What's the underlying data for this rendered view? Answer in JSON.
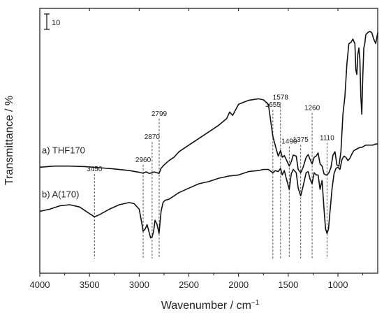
{
  "chart_data": {
    "type": "line",
    "xlabel": "Wavenumber / cm",
    "xlabel_sup": "−1",
    "ylabel": "Transmittance / %",
    "x_range": [
      4000,
      600
    ],
    "x_ticks": [
      4000,
      3500,
      3000,
      2500,
      2000,
      1500,
      1000
    ],
    "x_tick_labels": [
      "4000",
      "3500",
      "3000",
      "2500",
      "2000",
      "1500",
      "1000"
    ],
    "scale_bar_label": "10",
    "peak_markers": [
      {
        "label": "3450",
        "x": 3450
      },
      {
        "label": "2960",
        "x": 2960
      },
      {
        "label": "2870",
        "x": 2870
      },
      {
        "label": "2799",
        "x": 2799
      },
      {
        "label": "1655",
        "x": 1655
      },
      {
        "label": "1578",
        "x": 1578
      },
      {
        "label": "1490",
        "x": 1490
      },
      {
        "label": "1375",
        "x": 1375
      },
      {
        "label": "1260",
        "x": 1260
      },
      {
        "label": "1110",
        "x": 1110
      }
    ],
    "series": [
      {
        "name": "a) THF170",
        "x": [
          4000,
          3850,
          3700,
          3550,
          3400,
          3250,
          3100,
          3000,
          2960,
          2930,
          2900,
          2870,
          2850,
          2800,
          2780,
          2750,
          2700,
          2650,
          2600,
          2500,
          2400,
          2300,
          2200,
          2120,
          2090,
          2060,
          2000,
          1900,
          1800,
          1750,
          1700,
          1655,
          1620,
          1600,
          1578,
          1560,
          1540,
          1520,
          1490,
          1470,
          1450,
          1420,
          1400,
          1375,
          1350,
          1320,
          1300,
          1280,
          1260,
          1240,
          1220,
          1200,
          1180,
          1160,
          1140,
          1120,
          1110,
          1090,
          1070,
          1050,
          1030,
          1010,
          990,
          970,
          950,
          930,
          910,
          890,
          870,
          850,
          830,
          820,
          810,
          800,
          790,
          780,
          770,
          760,
          750,
          740,
          730,
          720,
          700,
          680,
          660,
          640,
          620,
          600
        ],
        "y": [
          48,
          48.5,
          48.5,
          48.3,
          47.8,
          47.2,
          46.5,
          45.7,
          45.3,
          45.9,
          45.2,
          45.5,
          45.9,
          45.2,
          47.5,
          49,
          51,
          52.5,
          55,
          58,
          61,
          64,
          67,
          70,
          73,
          71.5,
          76.5,
          78.3,
          79,
          78.5,
          76.5,
          62,
          56,
          53,
          55.5,
          52.5,
          53.3,
          51.5,
          48.5,
          50.5,
          53.5,
          53,
          47,
          45.5,
          48,
          52.5,
          53.7,
          51.5,
          49.5,
          52.5,
          53,
          54.5,
          49.5,
          48.5,
          45,
          44.5,
          44.5,
          45.5,
          48,
          53.5,
          55,
          49,
          48.5,
          55,
          72,
          80,
          95,
          104,
          104.5,
          106,
          104,
          92,
          90,
          99,
          102,
          97,
          80,
          72,
          89,
          102,
          104,
          108,
          109,
          109.5,
          109,
          106,
          104,
          109
        ]
      },
      {
        "name": "b) A(170)",
        "x": [
          4000,
          3900,
          3800,
          3700,
          3600,
          3500,
          3450,
          3400,
          3300,
          3200,
          3100,
          3050,
          3000,
          2975,
          2960,
          2940,
          2920,
          2900,
          2885,
          2870,
          2855,
          2840,
          2820,
          2800,
          2780,
          2760,
          2740,
          2700,
          2600,
          2500,
          2400,
          2300,
          2200,
          2100,
          2000,
          1900,
          1800,
          1750,
          1700,
          1655,
          1630,
          1600,
          1578,
          1560,
          1540,
          1520,
          1490,
          1470,
          1450,
          1420,
          1400,
          1375,
          1350,
          1320,
          1300,
          1280,
          1260,
          1240,
          1220,
          1200,
          1180,
          1160,
          1140,
          1125,
          1110,
          1095,
          1080,
          1060,
          1040,
          1020,
          1000,
          980,
          960,
          940,
          920,
          900,
          880,
          860,
          840,
          820,
          800,
          780,
          760,
          740,
          720,
          700,
          680,
          650,
          620,
          600
        ],
        "y": [
          28,
          29,
          30.5,
          31,
          30,
          27,
          25.5,
          26.5,
          29,
          31,
          32,
          31.5,
          29,
          23,
          19,
          20,
          22,
          18.5,
          16,
          16.5,
          19,
          24,
          22,
          18,
          28,
          32,
          33,
          33.5,
          36.5,
          38.5,
          40.5,
          41.5,
          43,
          44,
          44.5,
          46,
          46.5,
          47,
          47,
          45.5,
          46.5,
          46,
          47.5,
          44.5,
          46.5,
          43,
          38,
          45,
          47,
          45.5,
          38.5,
          35,
          39.5,
          45.5,
          46,
          42.5,
          40.5,
          45.5,
          44.5,
          44.5,
          38,
          42,
          29,
          20,
          18,
          20,
          28,
          38,
          45,
          47.5,
          48,
          47,
          51.5,
          53,
          52.5,
          51,
          52,
          54,
          55.5,
          56,
          56.5,
          57,
          57,
          57.5,
          58,
          58,
          58,
          58,
          58.5,
          58.5
        ]
      }
    ]
  }
}
